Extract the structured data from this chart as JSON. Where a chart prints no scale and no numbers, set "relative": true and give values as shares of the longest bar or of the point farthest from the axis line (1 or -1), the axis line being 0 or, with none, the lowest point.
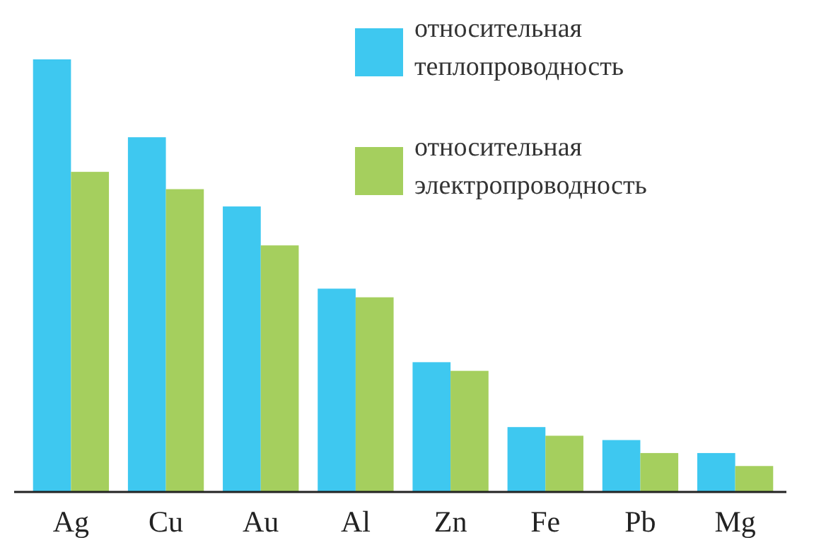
{
  "chart_data": {
    "type": "bar",
    "relative": true,
    "categories": [
      "Ag",
      "Cu",
      "Au",
      "Al",
      "Zn",
      "Fe",
      "Pb",
      "Mg"
    ],
    "legend": "top right",
    "series": [
      {
        "name": "относительная теплопроводность",
        "color": "#3ec8f0",
        "values": [
          1,
          0.82,
          0.66,
          0.47,
          0.3,
          0.15,
          0.12,
          0.09
        ]
      },
      {
        "name": "относительная электропроводность",
        "color": "#a5cf5e",
        "values": [
          0.74,
          0.7,
          0.57,
          0.45,
          0.28,
          0.13,
          0.09,
          0.06
        ]
      }
    ]
  }
}
